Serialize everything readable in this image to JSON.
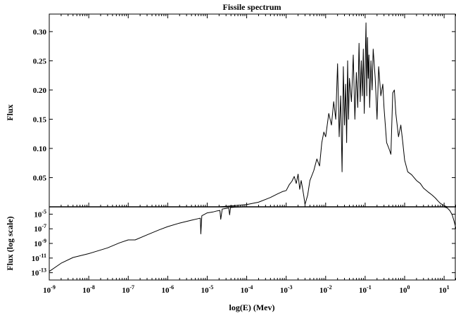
{
  "chart_data": [
    {
      "type": "line",
      "panel": "top",
      "title": "Fissile spectrum",
      "xlabel": "",
      "ylabel": "Flux",
      "x_scale": "log",
      "xlim": [
        1e-09,
        20
      ],
      "ylim": [
        0,
        0.33
      ],
      "y_ticks": [
        "0.05",
        "0.10",
        "0.15",
        "0.20",
        "0.25",
        "0.30"
      ],
      "y_tick_values": [
        0.05,
        0.1,
        0.15,
        0.2,
        0.25,
        0.3
      ],
      "grid": false,
      "legend": "none",
      "series": [
        {
          "x": [
            2e-05,
            5e-05,
            0.0001,
            0.0002,
            0.0004,
            0.0006,
            0.0008,
            0.001,
            0.0012,
            0.0014,
            0.0016,
            0.0018,
            0.002,
            0.0022,
            0.0024,
            0.0026,
            0.0028,
            0.003,
            0.0035,
            0.004,
            0.005,
            0.006,
            0.007,
            0.008,
            0.009,
            0.01,
            0.012,
            0.014,
            0.016,
            0.018,
            0.02,
            0.022,
            0.024,
            0.026,
            0.028,
            0.03,
            0.032,
            0.034,
            0.036,
            0.038,
            0.04,
            0.045,
            0.05,
            0.055,
            0.06,
            0.065,
            0.07,
            0.075,
            0.08,
            0.085,
            0.09,
            0.095,
            0.1,
            0.105,
            0.11,
            0.115,
            0.12,
            0.125,
            0.13,
            0.14,
            0.15,
            0.16,
            0.18,
            0.2,
            0.22,
            0.25,
            0.28,
            0.3,
            0.35,
            0.4,
            0.45,
            0.5,
            0.55,
            0.6,
            0.7,
            0.8,
            0.9,
            1.0,
            1.2,
            1.5,
            2.0,
            2.5,
            3.0,
            4.0,
            5.0,
            6.0,
            7.0,
            8.0,
            10.0,
            12.0,
            15.0,
            20.0
          ],
          "y": [
            0.0,
            0.002,
            0.004,
            0.008,
            0.016,
            0.022,
            0.026,
            0.028,
            0.038,
            0.044,
            0.052,
            0.04,
            0.056,
            0.03,
            0.045,
            0.032,
            0.018,
            0.004,
            0.02,
            0.045,
            0.062,
            0.082,
            0.07,
            0.11,
            0.128,
            0.12,
            0.16,
            0.14,
            0.18,
            0.15,
            0.245,
            0.12,
            0.19,
            0.06,
            0.24,
            0.14,
            0.21,
            0.11,
            0.25,
            0.15,
            0.22,
            0.18,
            0.26,
            0.15,
            0.23,
            0.17,
            0.28,
            0.18,
            0.25,
            0.19,
            0.27,
            0.16,
            0.24,
            0.315,
            0.19,
            0.29,
            0.22,
            0.26,
            0.17,
            0.25,
            0.2,
            0.27,
            0.22,
            0.15,
            0.24,
            0.19,
            0.21,
            0.17,
            0.11,
            0.1,
            0.09,
            0.195,
            0.2,
            0.16,
            0.12,
            0.14,
            0.11,
            0.08,
            0.06,
            0.055,
            0.045,
            0.04,
            0.032,
            0.025,
            0.02,
            0.015,
            0.01,
            0.006,
            0.002,
            0.0,
            0.0,
            0.0
          ]
        }
      ]
    },
    {
      "type": "line",
      "panel": "bottom",
      "title": "",
      "xlabel": "log(E) (Mev)",
      "ylabel": "Flux (log scale)",
      "x_scale": "log",
      "y_scale": "log",
      "xlim": [
        1e-09,
        20
      ],
      "ylim": [
        1e-14,
        0.0001
      ],
      "x_ticks": [
        {
          "base": "10",
          "exp": "-9",
          "value": 1e-09
        },
        {
          "base": "10",
          "exp": "-8",
          "value": 1e-08
        },
        {
          "base": "10",
          "exp": "-7",
          "value": 1e-07
        },
        {
          "base": "10",
          "exp": "-6",
          "value": 1e-06
        },
        {
          "base": "10",
          "exp": "-5",
          "value": 1e-05
        },
        {
          "base": "10",
          "exp": "-4",
          "value": 0.0001
        },
        {
          "base": "10",
          "exp": "-3",
          "value": 0.001
        },
        {
          "base": "10",
          "exp": "-2",
          "value": 0.01
        },
        {
          "base": "10",
          "exp": "-1",
          "value": 0.1
        },
        {
          "base": "10",
          "exp": "0",
          "value": 1
        },
        {
          "base": "10",
          "exp": "1",
          "value": 10
        }
      ],
      "y_ticks": [
        {
          "base": "10",
          "exp": "-5",
          "value": 1e-05
        },
        {
          "base": "10",
          "exp": "-7",
          "value": 1e-07
        },
        {
          "base": "10",
          "exp": "-9",
          "value": 1e-09
        },
        {
          "base": "10",
          "exp": "-11",
          "value": 1e-11
        },
        {
          "base": "10",
          "exp": "-13",
          "value": 1e-13
        }
      ],
      "grid": false,
      "legend": "none",
      "series": [
        {
          "x": [
            1e-09,
            2e-09,
            4e-09,
            1e-08,
            3e-08,
            6e-08,
            1e-07,
            1.5e-07,
            3e-07,
            6e-07,
            1e-06,
            2e-06,
            4e-06,
            6e-06,
            6.7e-06,
            6.9e-06,
            7.3e-06,
            1e-05,
            1.4e-05,
            1.8e-05,
            2.1e-05,
            2.2e-05,
            2.4e-05,
            3e-05,
            3.5e-05,
            3.7e-05,
            3.9e-05,
            5e-05,
            8e-05,
            0.0001
          ],
          "y": [
            1.5e-13,
            2e-12,
            1.2e-11,
            4e-11,
            2.5e-10,
            1.2e-09,
            3e-09,
            3e-09,
            1.5e-08,
            7e-08,
            2e-07,
            6e-07,
            1.5e-06,
            2.5e-06,
            2.8e-06,
            2e-08,
            6e-06,
            1.5e-05,
            2e-05,
            2.8e-05,
            3.2e-05,
            2e-06,
            5e-05,
            6e-05,
            7e-05,
            8e-06,
            8e-05,
            9e-05,
            0.0001,
            0.0001
          ]
        },
        {
          "x": [
            10,
            12,
            14,
            16,
            18,
            20
          ],
          "y": [
            0.0001,
            7e-05,
            3e-05,
            8e-06,
            1e-06,
            1e-07
          ]
        }
      ]
    }
  ]
}
